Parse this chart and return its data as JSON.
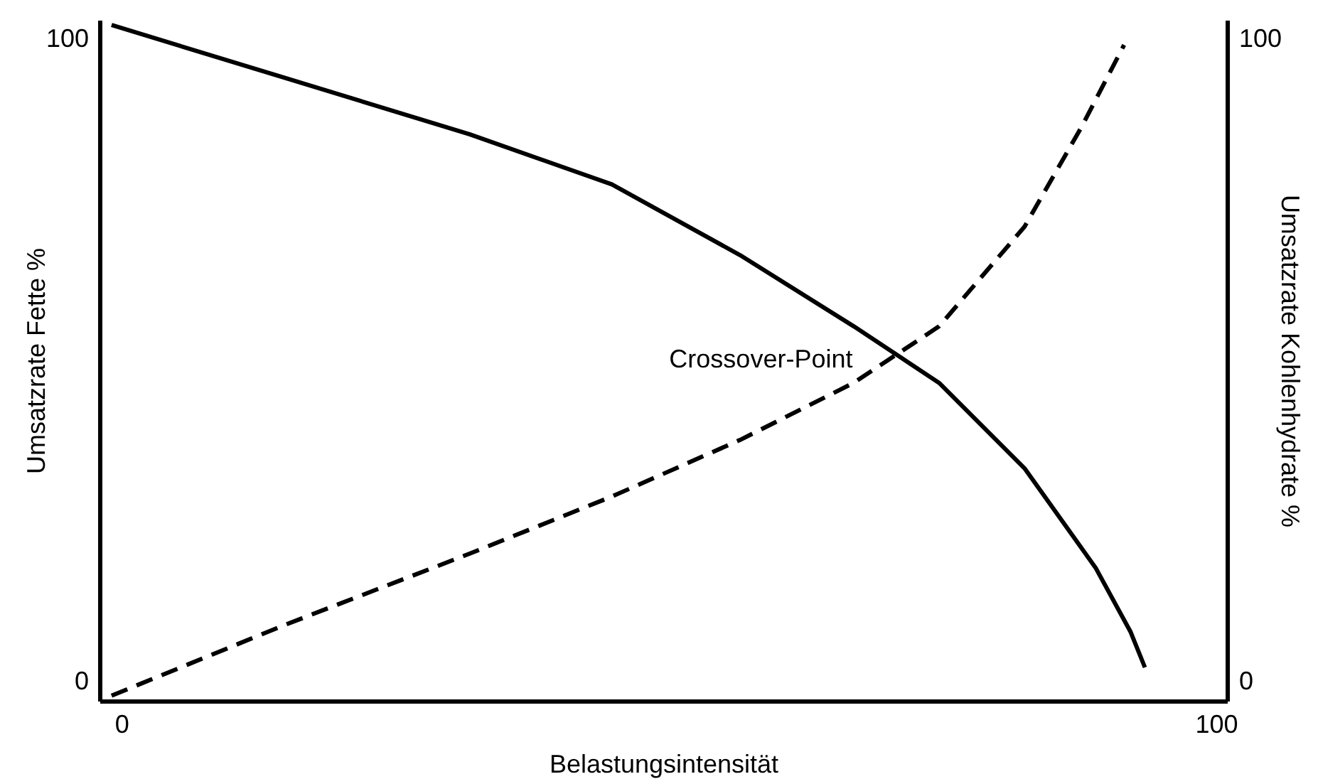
{
  "chart_data": {
    "type": "line",
    "xlabel": "Belastungsintensität",
    "ylabel": "Umsatzrate Fette %",
    "y2label": "Umsatzrate Kohlenhydrate %",
    "xlim": [
      -2,
      101
    ],
    "xticks": [
      0,
      100
    ],
    "ylim": [
      -3,
      103
    ],
    "yticks": [
      0,
      100
    ],
    "y2lim": [
      -3,
      103
    ],
    "y2ticks": [
      0,
      100
    ],
    "grid": false,
    "series": [
      {
        "color": "#000000",
        "line_style": "solid",
        "x": [
          -0.9,
          14.9,
          31.8,
          44.8,
          56.5,
          66.9,
          74.7,
          82.5,
          89.0,
          92.2,
          93.5
        ],
        "values": [
          102.2,
          94.0,
          85.2,
          77.4,
          66.4,
          55.3,
          46.5,
          33.2,
          17.7,
          7.7,
          2.2
        ]
      },
      {
        "color": "#000000",
        "line_style": "dashed",
        "axis": "y2",
        "x": [
          -0.9,
          14.9,
          31.8,
          44.8,
          56.5,
          66.9,
          74.7,
          82.5,
          87.7,
          91.6
        ],
        "values": [
          -2.2,
          8.8,
          19.9,
          28.8,
          37.6,
          46.5,
          55.3,
          70.8,
          86.3,
          99.1
        ]
      }
    ],
    "annotations": [
      {
        "text": "Crossover-Point",
        "x": 72,
        "y": 50
      }
    ]
  }
}
